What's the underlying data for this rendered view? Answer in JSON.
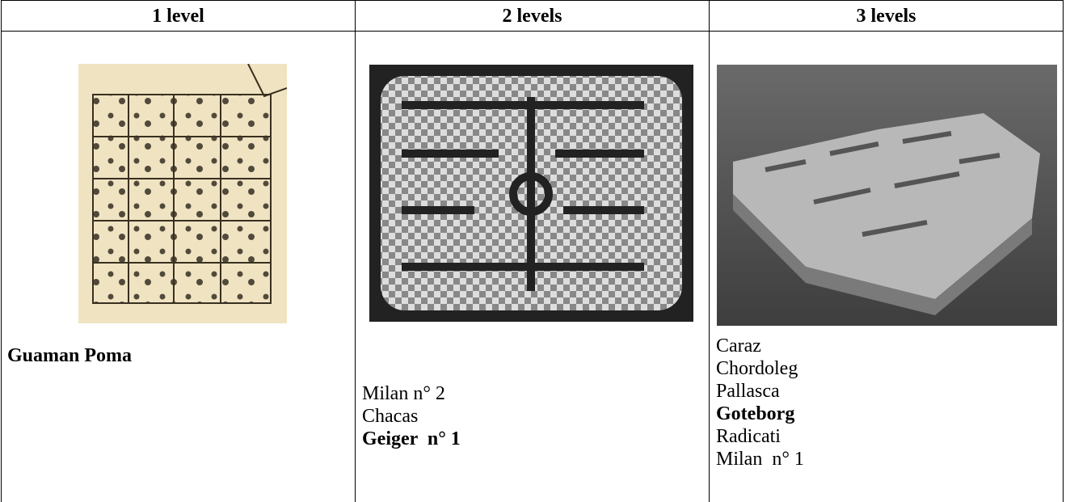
{
  "table": {
    "headers": [
      "1 level",
      "2 levels",
      "3 levels"
    ],
    "cells": [
      {
        "lines": [
          {
            "text": "Guaman Poma",
            "bold": true
          }
        ]
      },
      {
        "lines": [
          {
            "text": "Milan n° 2",
            "bold": false
          },
          {
            "text": "Chacas",
            "bold": false
          },
          {
            "text": "Geiger  n° 1",
            "bold": true
          }
        ]
      },
      {
        "lines": [
          {
            "text": "Caraz",
            "bold": false
          },
          {
            "text": "Chordoleg",
            "bold": false
          },
          {
            "text": "Pallasca",
            "bold": false
          },
          {
            "text": "Goteborg",
            "bold": true
          },
          {
            "text": "Radicati",
            "bold": false
          },
          {
            "text": "Milan  n° 1",
            "bold": false
          }
        ]
      }
    ]
  }
}
